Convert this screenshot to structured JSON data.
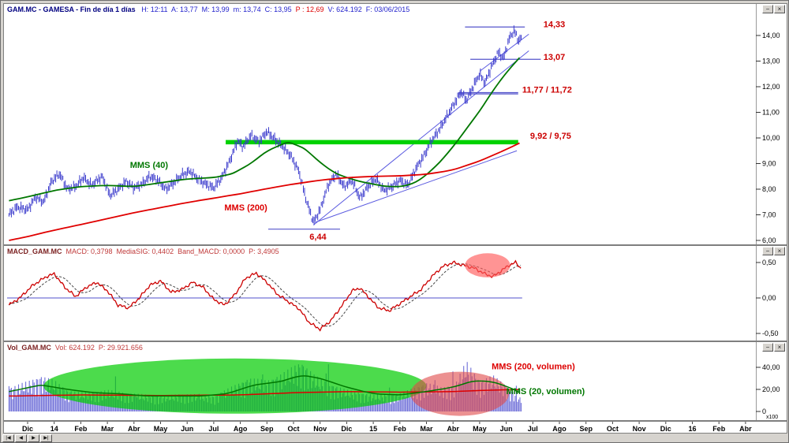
{
  "controls": {
    "minimize": "−",
    "close": "×"
  },
  "navigation": {
    "first": "|◀",
    "prev": "◀",
    "next": "▶",
    "last": "▶|"
  },
  "panels": {
    "price": {
      "title_name": "GAM.MC - GAMESA - Fin de día 1 días   ",
      "title_ohlc": "H: 12:11  A: 13,77  M: 13,99  m: 13,74  C: 13,95  ",
      "title_p": "P : 12,69  ",
      "title_vf": "V: 624.192  F: 03/06/2015"
    },
    "macd": {
      "title_name": "MACD_GAM.MC  ",
      "title_values": "MACD: 0,3798  MediaSIG: 0,4402  Band_MACD: 0,0000  P: 3,4905"
    },
    "volume": {
      "title_name": "Vol_GAM.MC  ",
      "title_values": "Vol: 624.192  P: 29.921.656"
    }
  },
  "chart_data": {
    "type": "multi-panel-financial",
    "symbol": "GAM.MC",
    "x_labels": [
      "Dic",
      "14",
      "Feb",
      "Mar",
      "Abr",
      "May",
      "Jun",
      "Jul",
      "Ago",
      "Sep",
      "Oct",
      "Nov",
      "Dic",
      "15",
      "Feb",
      "Mar",
      "Abr",
      "May",
      "Jun",
      "Jul",
      "Ago",
      "Sep",
      "Oct",
      "Nov",
      "Dic",
      "16",
      "Feb",
      "Abr"
    ],
    "data_t_range": [
      -0.7,
      18.6
    ],
    "price_panel": {
      "y_ticks": [
        {
          "label": "14,00",
          "value": 14
        },
        {
          "label": "13,00",
          "value": 13
        },
        {
          "label": "12,00",
          "value": 12
        },
        {
          "label": "11,00",
          "value": 11
        },
        {
          "label": "10,00",
          "value": 10
        },
        {
          "label": "9,00",
          "value": 9
        },
        {
          "label": "8,00",
          "value": 8
        },
        {
          "label": "7,00",
          "value": 7
        },
        {
          "label": "6,00",
          "value": 6
        }
      ],
      "ylim": [
        6,
        14.5
      ],
      "price_anchors": [
        [
          -0.7,
          7.0
        ],
        [
          -0.4,
          7.3
        ],
        [
          0,
          7.2
        ],
        [
          0.3,
          7.7
        ],
        [
          0.6,
          7.5
        ],
        [
          0.9,
          8.3
        ],
        [
          1.2,
          8.6
        ],
        [
          1.5,
          8.0
        ],
        [
          1.8,
          8.1
        ],
        [
          2.1,
          8.45
        ],
        [
          2.4,
          8.15
        ],
        [
          2.8,
          8.5
        ],
        [
          3.1,
          7.75
        ],
        [
          3.4,
          8.0
        ],
        [
          3.7,
          8.3
        ],
        [
          4.0,
          8.05
        ],
        [
          4.3,
          8.2
        ],
        [
          4.6,
          8.5
        ],
        [
          4.9,
          8.35
        ],
        [
          5.2,
          8.0
        ],
        [
          5.5,
          8.25
        ],
        [
          5.8,
          8.55
        ],
        [
          6.1,
          8.7
        ],
        [
          6.4,
          8.4
        ],
        [
          6.7,
          8.2
        ],
        [
          7.0,
          8.05
        ],
        [
          7.3,
          8.45
        ],
        [
          7.6,
          9.1
        ],
        [
          7.9,
          9.9
        ],
        [
          8.1,
          9.65
        ],
        [
          8.4,
          10.1
        ],
        [
          8.7,
          9.85
        ],
        [
          9.0,
          10.25
        ],
        [
          9.3,
          9.95
        ],
        [
          9.6,
          9.65
        ],
        [
          9.9,
          9.3
        ],
        [
          10.2,
          8.7
        ],
        [
          10.5,
          7.5
        ],
        [
          10.75,
          6.7
        ],
        [
          11.0,
          7.2
        ],
        [
          11.3,
          8.15
        ],
        [
          11.6,
          8.6
        ],
        [
          11.9,
          8.1
        ],
        [
          12.2,
          8.35
        ],
        [
          12.5,
          7.65
        ],
        [
          12.8,
          8.1
        ],
        [
          13.1,
          8.4
        ],
        [
          13.4,
          7.95
        ],
        [
          13.7,
          8.1
        ],
        [
          14.0,
          8.35
        ],
        [
          14.3,
          8.15
        ],
        [
          14.6,
          8.8
        ],
        [
          14.9,
          9.3
        ],
        [
          15.2,
          9.9
        ],
        [
          15.5,
          10.35
        ],
        [
          15.8,
          10.9
        ],
        [
          16.05,
          11.35
        ],
        [
          16.3,
          11.8
        ],
        [
          16.5,
          11.45
        ],
        [
          16.8,
          12.1
        ],
        [
          17.0,
          12.5
        ],
        [
          17.2,
          12.15
        ],
        [
          17.5,
          12.9
        ],
        [
          17.7,
          13.35
        ],
        [
          17.9,
          13.1
        ],
        [
          18.1,
          13.85
        ],
        [
          18.3,
          14.2
        ],
        [
          18.45,
          13.8
        ],
        [
          18.6,
          13.95
        ]
      ],
      "mms40_anchors": [
        [
          -0.7,
          7.55
        ],
        [
          0,
          7.7
        ],
        [
          1,
          7.95
        ],
        [
          2,
          8.1
        ],
        [
          3,
          8.15
        ],
        [
          4,
          8.1
        ],
        [
          5,
          8.25
        ],
        [
          6,
          8.4
        ],
        [
          7,
          8.45
        ],
        [
          7.7,
          8.6
        ],
        [
          8.4,
          9.0
        ],
        [
          9,
          9.5
        ],
        [
          9.8,
          9.85
        ],
        [
          10.4,
          9.6
        ],
        [
          11,
          9.05
        ],
        [
          11.5,
          8.65
        ],
        [
          12,
          8.45
        ],
        [
          12.5,
          8.3
        ],
        [
          13,
          8.2
        ],
        [
          13.5,
          8.1
        ],
        [
          14,
          8.1
        ],
        [
          14.5,
          8.2
        ],
        [
          15,
          8.55
        ],
        [
          15.5,
          9.05
        ],
        [
          16,
          9.65
        ],
        [
          16.5,
          10.35
        ],
        [
          17,
          11.05
        ],
        [
          17.5,
          11.85
        ],
        [
          18,
          12.55
        ],
        [
          18.6,
          13.25
        ]
      ],
      "mms200_anchors": [
        [
          -0.7,
          6.0
        ],
        [
          0,
          6.15
        ],
        [
          1,
          6.4
        ],
        [
          2,
          6.62
        ],
        [
          3,
          6.85
        ],
        [
          4,
          7.08
        ],
        [
          5,
          7.28
        ],
        [
          6,
          7.48
        ],
        [
          7,
          7.65
        ],
        [
          8,
          7.82
        ],
        [
          9,
          8.02
        ],
        [
          10,
          8.2
        ],
        [
          11,
          8.35
        ],
        [
          12,
          8.45
        ],
        [
          13,
          8.5
        ],
        [
          14,
          8.52
        ],
        [
          15,
          8.58
        ],
        [
          16,
          8.75
        ],
        [
          17,
          9.1
        ],
        [
          18,
          9.55
        ],
        [
          18.6,
          9.85
        ]
      ],
      "levels": [
        {
          "label": "14,33",
          "values": [
            14.33
          ],
          "t1": 16.45,
          "t2": 18.7,
          "style": "blue",
          "label_t": 19.4,
          "label_value": 14.45
        },
        {
          "label": "13,07",
          "values": [
            13.07
          ],
          "t1": 16.65,
          "t2": 19.3,
          "style": "blue",
          "label_t": 19.4,
          "label_value": 13.17
        },
        {
          "label": "11,77 / 11,72",
          "values": [
            11.77,
            11.72
          ],
          "t1": 16.2,
          "t2": 18.45,
          "style": "blue",
          "label_t": 18.6,
          "label_value": 11.9
        },
        {
          "label": "9,92 / 9,75",
          "values": [
            9.92,
            9.75
          ],
          "t1": 7.45,
          "t2": 18.45,
          "style": "green-band",
          "label_t": 18.9,
          "label_value": 10.1
        },
        {
          "label": "6,44",
          "values": [
            6.44
          ],
          "t1": 9.05,
          "t2": 11.75,
          "style": "blue",
          "label_t": 10.6,
          "label_value": 6.15
        }
      ],
      "trendlines": [
        {
          "t1": 10.75,
          "v1": 6.6,
          "t2": 18.85,
          "v2": 13.4
        },
        {
          "t1": 10.8,
          "v1": 6.7,
          "t2": 18.4,
          "v2": 9.5
        },
        {
          "t1": 17.0,
          "v1": 12.6,
          "t2": 18.85,
          "v2": 14.05
        }
      ],
      "ma_labels": [
        {
          "text": "MMS (40)",
          "color": "#007700",
          "t": 3.85,
          "value": 8.95
        },
        {
          "text": "MMS (200)",
          "color": "#dd0000",
          "t": 7.4,
          "value": 7.3
        }
      ],
      "level_label_color": "#cc0000",
      "bar_color": "#3a3acc",
      "mms40_color": "#007700",
      "mms200_color": "#e00000",
      "line_color": "#5555cc",
      "band_color": "#00d200"
    },
    "macd_panel": {
      "y_ticks": [
        {
          "label": "0,50",
          "value": 0.5
        },
        {
          "label": "0,00",
          "value": 0
        },
        {
          "label": "-0,50",
          "value": -0.5
        }
      ],
      "ylim": [
        -0.7,
        0.73
      ],
      "macd_anchors": [
        [
          -0.7,
          -0.1
        ],
        [
          -0.3,
          0.0
        ],
        [
          0.2,
          0.18
        ],
        [
          0.7,
          0.3
        ],
        [
          1.0,
          0.34
        ],
        [
          1.4,
          0.15
        ],
        [
          1.8,
          0.02
        ],
        [
          2.2,
          0.15
        ],
        [
          2.6,
          0.22
        ],
        [
          3.0,
          0.1
        ],
        [
          3.4,
          -0.1
        ],
        [
          3.8,
          -0.14
        ],
        [
          4.2,
          0.0
        ],
        [
          4.6,
          0.18
        ],
        [
          5.0,
          0.24
        ],
        [
          5.4,
          0.08
        ],
        [
          5.8,
          0.12
        ],
        [
          6.2,
          0.22
        ],
        [
          6.6,
          0.15
        ],
        [
          7.0,
          -0.02
        ],
        [
          7.4,
          -0.1
        ],
        [
          7.8,
          0.05
        ],
        [
          8.2,
          0.28
        ],
        [
          8.6,
          0.35
        ],
        [
          9.0,
          0.22
        ],
        [
          9.4,
          0.05
        ],
        [
          9.8,
          -0.05
        ],
        [
          10.2,
          -0.15
        ],
        [
          10.6,
          -0.35
        ],
        [
          11.0,
          -0.44
        ],
        [
          11.4,
          -0.32
        ],
        [
          11.8,
          -0.12
        ],
        [
          12.2,
          0.1
        ],
        [
          12.5,
          0.14
        ],
        [
          12.8,
          0.02
        ],
        [
          13.2,
          -0.14
        ],
        [
          13.6,
          -0.18
        ],
        [
          14.0,
          -0.08
        ],
        [
          14.4,
          0.02
        ],
        [
          14.8,
          0.12
        ],
        [
          15.2,
          0.3
        ],
        [
          15.6,
          0.44
        ],
        [
          16.0,
          0.5
        ],
        [
          16.4,
          0.46
        ],
        [
          16.8,
          0.42
        ],
        [
          17.2,
          0.34
        ],
        [
          17.5,
          0.3
        ],
        [
          17.8,
          0.38
        ],
        [
          18.1,
          0.46
        ],
        [
          18.35,
          0.5
        ],
        [
          18.6,
          0.4
        ]
      ],
      "zero_line_value": 0,
      "macd_color": "#cc0000",
      "signal_color": "#444444",
      "zero_line_color": "#5050cc",
      "highlight_ellipse": {
        "t": 17.3,
        "value": 0.46,
        "rt": 0.85,
        "rv": 0.17,
        "color": "#ff5a5a",
        "opacity": 0.65
      }
    },
    "volume_panel": {
      "y_ticks": [
        {
          "label": "40,00",
          "value": 40
        },
        {
          "label": "20,00",
          "value": 20
        },
        {
          "label": "0",
          "value": 0
        }
      ],
      "scale_note": "x100",
      "ylim": [
        0,
        62
      ],
      "envelope_anchors": [
        [
          -0.7,
          20
        ],
        [
          0,
          25
        ],
        [
          0.5,
          30
        ],
        [
          1,
          26
        ],
        [
          1.5,
          18
        ],
        [
          2,
          16
        ],
        [
          3,
          18
        ],
        [
          4,
          15
        ],
        [
          5,
          13
        ],
        [
          6,
          15
        ],
        [
          7,
          13
        ],
        [
          7.8,
          22
        ],
        [
          8.3,
          28
        ],
        [
          9,
          26
        ],
        [
          9.6,
          32
        ],
        [
          10.3,
          42
        ],
        [
          10.8,
          30
        ],
        [
          11.3,
          24
        ],
        [
          12,
          18
        ],
        [
          13,
          14
        ],
        [
          14,
          15
        ],
        [
          15,
          24
        ],
        [
          15.6,
          20
        ],
        [
          16.1,
          24
        ],
        [
          16.5,
          42
        ],
        [
          17,
          26
        ],
        [
          17.5,
          30
        ],
        [
          18,
          22
        ],
        [
          18.6,
          10
        ]
      ],
      "mms20vol_anchors": [
        [
          -0.7,
          18
        ],
        [
          0.5,
          24
        ],
        [
          1.5,
          20
        ],
        [
          2.5,
          17
        ],
        [
          3.5,
          16
        ],
        [
          4.5,
          14
        ],
        [
          5.5,
          14
        ],
        [
          6.5,
          14
        ],
        [
          7.5,
          16
        ],
        [
          8.5,
          24
        ],
        [
          9.5,
          27
        ],
        [
          10.3,
          33
        ],
        [
          11,
          30
        ],
        [
          12,
          22
        ],
        [
          13,
          16
        ],
        [
          14,
          15
        ],
        [
          15,
          18
        ],
        [
          16,
          22
        ],
        [
          16.8,
          28
        ],
        [
          17.5,
          27
        ],
        [
          18.2,
          21
        ],
        [
          18.6,
          16
        ]
      ],
      "mms200vol_anchors": [
        [
          -0.7,
          14
        ],
        [
          2,
          15
        ],
        [
          5,
          14.5
        ],
        [
          8,
          15
        ],
        [
          10,
          17
        ],
        [
          12,
          18
        ],
        [
          14,
          17.5
        ],
        [
          16,
          18
        ],
        [
          17,
          19
        ],
        [
          18.6,
          20
        ]
      ],
      "bar_color": "#7070d8",
      "mms20vol_color": "#007700",
      "mms200vol_color": "#dd0000",
      "ellipses": [
        {
          "t": 7.8,
          "value": 23,
          "rt": 7.2,
          "rv": 25,
          "color": "#00cc00",
          "opacity": 0.7
        },
        {
          "t": 16.25,
          "value": 16,
          "rt": 1.85,
          "rv": 20,
          "color": "#e04848",
          "opacity": 0.6
        }
      ],
      "ma_labels": [
        {
          "text": "MMS (200, volumen)",
          "color": "#dd0000",
          "t": 17.45,
          "value": 41
        },
        {
          "text": "MMS (20, volumen)",
          "color": "#007700",
          "t": 18.0,
          "value": 18.5
        }
      ]
    }
  }
}
